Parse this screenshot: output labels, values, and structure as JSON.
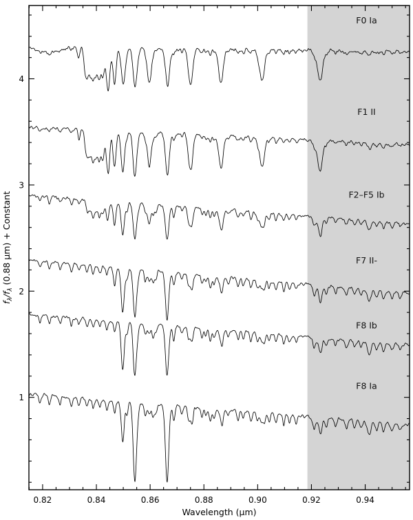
{
  "figure": {
    "background": "#ffffff"
  },
  "chart_data": {
    "type": "line",
    "title": "",
    "xlabel": "Wavelength (μm)",
    "ylabel_text": "fλ/fλ (0.88 μm) + Constant",
    "ylabel_parts": [
      {
        "text": "f",
        "style": "italic"
      },
      {
        "text": "λ",
        "style": "sub"
      },
      {
        "text": "/f",
        "style": "italic"
      },
      {
        "text": "λ",
        "style": "sub"
      },
      {
        "text": " (0.88 μm) + Constant",
        "style": "normal"
      }
    ],
    "line_color": "#000000",
    "xlim": [
      0.8149,
      0.9565
    ],
    "ylim": [
      0.13,
      4.69
    ],
    "x_major_ticks": [
      0.82,
      0.84,
      0.86,
      0.88,
      0.9,
      0.92,
      0.94
    ],
    "x_tick_labels": [
      "0.82",
      "0.84",
      "0.86",
      "0.88",
      "0.90",
      "0.92",
      "0.94"
    ],
    "x_minor_step": 0.005,
    "y_major_ticks": [
      1,
      2,
      3,
      4
    ],
    "y_tick_labels": [
      "1",
      "2",
      "3",
      "4"
    ],
    "y_minor_step": 0.2,
    "grid": false,
    "legend_position": "inline-right",
    "shaded_region": {
      "x_start": 0.9185,
      "x_end": 0.9565,
      "color": "#d4d4d4"
    },
    "metal_lines": [
      [
        0.819,
        0.06,
        0.0004
      ],
      [
        0.8225,
        0.07,
        0.0004
      ],
      [
        0.8265,
        0.06,
        0.0004
      ],
      [
        0.8307,
        0.07,
        0.0004
      ],
      [
        0.8335,
        0.06,
        0.0004
      ],
      [
        0.8365,
        0.07,
        0.0004
      ],
      [
        0.8388,
        0.08,
        0.0004
      ],
      [
        0.8413,
        0.07,
        0.0004
      ],
      [
        0.8439,
        0.08,
        0.0004
      ],
      [
        0.8468,
        0.1,
        0.00042
      ],
      [
        0.8514,
        0.1,
        0.00042
      ],
      [
        0.8555,
        0.07,
        0.0004
      ],
      [
        0.8582,
        0.1,
        0.00042
      ],
      [
        0.8611,
        0.11,
        0.00042
      ],
      [
        0.8621,
        0.08,
        0.0004
      ],
      [
        0.8688,
        0.12,
        0.00044
      ],
      [
        0.8718,
        0.06,
        0.0004
      ],
      [
        0.8742,
        0.07,
        0.0004
      ],
      [
        0.8757,
        0.08,
        0.0004
      ],
      [
        0.8793,
        0.08,
        0.0004
      ],
      [
        0.8807,
        0.07,
        0.0004
      ],
      [
        0.8824,
        0.11,
        0.00044
      ],
      [
        0.8838,
        0.08,
        0.0004
      ],
      [
        0.8868,
        0.08,
        0.0004
      ],
      [
        0.889,
        0.06,
        0.0004
      ],
      [
        0.8927,
        0.08,
        0.0004
      ],
      [
        0.8946,
        0.07,
        0.0004
      ],
      [
        0.8975,
        0.08,
        0.0004
      ],
      [
        0.8999,
        0.07,
        0.0004
      ],
      [
        0.9025,
        0.06,
        0.0004
      ],
      [
        0.9042,
        0.07,
        0.0004
      ],
      [
        0.9068,
        0.07,
        0.0004
      ],
      [
        0.9097,
        0.08,
        0.00042
      ],
      [
        0.9118,
        0.07,
        0.0004
      ],
      [
        0.9143,
        0.06,
        0.0004
      ],
      [
        0.921,
        0.1,
        0.0005
      ],
      [
        0.9234,
        0.08,
        0.00045
      ],
      [
        0.9255,
        0.07,
        0.00045
      ],
      [
        0.929,
        0.06,
        0.00045
      ],
      [
        0.933,
        0.07,
        0.0005
      ],
      [
        0.936,
        0.06,
        0.00045
      ],
      [
        0.9385,
        0.06,
        0.00045
      ],
      [
        0.9415,
        0.11,
        0.0007
      ],
      [
        0.9442,
        0.07,
        0.0005
      ],
      [
        0.9468,
        0.08,
        0.0005
      ],
      [
        0.95,
        0.06,
        0.0005
      ],
      [
        0.953,
        0.05,
        0.0005
      ]
    ],
    "series": [
      {
        "label": "F0 Ia",
        "label_x": 0.9405,
        "label_y": 4.52,
        "continuum_ref": 4.28,
        "slope": -0.35,
        "noise": 0.011,
        "seed": 11,
        "metal_scale": 0.35,
        "lines": [
          [
            0.822,
            0.05,
            0.004
          ],
          [
            0.8333,
            0.08,
            0.0004
          ],
          [
            0.83548,
            0.09,
            0.0004
          ],
          [
            0.83583,
            0.1,
            0.0004
          ],
          [
            0.83623,
            0.11,
            0.0004
          ],
          [
            0.8367,
            0.13,
            0.00042
          ],
          [
            0.83726,
            0.15,
            0.00044
          ],
          [
            0.83793,
            0.18,
            0.00046
          ],
          [
            0.83874,
            0.2,
            0.00048
          ],
          [
            0.83971,
            0.23,
            0.0005
          ],
          [
            0.84091,
            0.26,
            0.00055
          ],
          [
            0.8424,
            0.28,
            0.0006
          ],
          [
            0.84429,
            0.3,
            0.00062
          ],
          [
            0.84462,
            0.12,
            0.0005
          ],
          [
            0.84673,
            0.31,
            0.00065
          ],
          [
            0.84998,
            0.34,
            0.0007
          ],
          [
            0.85441,
            0.36,
            0.00072
          ],
          [
            0.85967,
            0.33,
            0.00072
          ],
          [
            0.8665,
            0.35,
            0.00075
          ],
          [
            0.87501,
            0.32,
            0.0008
          ],
          [
            0.8863,
            0.3,
            0.00085
          ],
          [
            0.90153,
            0.28,
            0.0009
          ],
          [
            0.92315,
            0.26,
            0.001
          ]
        ]
      },
      {
        "label": "F1 II",
        "label_x": 0.9405,
        "label_y": 3.66,
        "continuum_ref": 3.47,
        "slope": -1.2,
        "noise": 0.01,
        "seed": 22,
        "metal_scale": 0.5,
        "lines": [
          [
            0.8336,
            0.07,
            0.0004
          ],
          [
            0.8358,
            0.09,
            0.0004
          ],
          [
            0.8362,
            0.1,
            0.0004
          ],
          [
            0.8367,
            0.12,
            0.00042
          ],
          [
            0.83726,
            0.14,
            0.00044
          ],
          [
            0.83793,
            0.16,
            0.00046
          ],
          [
            0.83874,
            0.19,
            0.00048
          ],
          [
            0.83971,
            0.22,
            0.0005
          ],
          [
            0.84091,
            0.25,
            0.00055
          ],
          [
            0.8424,
            0.27,
            0.00058
          ],
          [
            0.84429,
            0.29,
            0.0006
          ],
          [
            0.84462,
            0.11,
            0.0005
          ],
          [
            0.84673,
            0.3,
            0.00062
          ],
          [
            0.8498,
            0.38,
            0.00065
          ],
          [
            0.8543,
            0.42,
            0.00068
          ],
          [
            0.85967,
            0.32,
            0.00068
          ],
          [
            0.8664,
            0.4,
            0.0007
          ],
          [
            0.87501,
            0.31,
            0.00075
          ],
          [
            0.8863,
            0.29,
            0.0008
          ],
          [
            0.90153,
            0.27,
            0.00085
          ],
          [
            0.92315,
            0.25,
            0.00095
          ]
        ]
      },
      {
        "label": "F2–F5 Ib",
        "label_x": 0.9405,
        "label_y": 2.88,
        "continuum_ref": 2.78,
        "slope": -1.85,
        "noise": 0.009,
        "seed": 33,
        "metal_scale": 0.8,
        "lines": [
          [
            0.8367,
            0.05,
            0.0004
          ],
          [
            0.83726,
            0.06,
            0.0004
          ],
          [
            0.83793,
            0.07,
            0.00042
          ],
          [
            0.83874,
            0.08,
            0.00044
          ],
          [
            0.83971,
            0.1,
            0.00046
          ],
          [
            0.84091,
            0.11,
            0.0005
          ],
          [
            0.8424,
            0.12,
            0.00052
          ],
          [
            0.84429,
            0.13,
            0.00055
          ],
          [
            0.84673,
            0.14,
            0.00058
          ],
          [
            0.8498,
            0.3,
            0.0006
          ],
          [
            0.8543,
            0.34,
            0.00062
          ],
          [
            0.85967,
            0.18,
            0.0006
          ],
          [
            0.8663,
            0.32,
            0.00065
          ],
          [
            0.87501,
            0.16,
            0.0007
          ],
          [
            0.8863,
            0.15,
            0.00075
          ],
          [
            0.90153,
            0.14,
            0.0008
          ],
          [
            0.92315,
            0.12,
            0.0009
          ]
        ]
      },
      {
        "label": "F7 II-",
        "label_x": 0.9405,
        "label_y": 2.26,
        "continuum_ref": 2.15,
        "slope": -2.2,
        "noise": 0.009,
        "seed": 44,
        "metal_scale": 1.0,
        "lines": [
          [
            0.8498,
            0.42,
            0.00058
          ],
          [
            0.8543,
            0.46,
            0.0006
          ],
          [
            0.8663,
            0.44,
            0.00062
          ],
          [
            0.84673,
            0.07,
            0.0005
          ],
          [
            0.85967,
            0.1,
            0.00055
          ],
          [
            0.87501,
            0.1,
            0.0006
          ],
          [
            0.8863,
            0.09,
            0.00065
          ],
          [
            0.90153,
            0.08,
            0.0007
          ],
          [
            0.92315,
            0.08,
            0.0008
          ]
        ]
      },
      {
        "label": "F8 Ib",
        "label_x": 0.9405,
        "label_y": 1.65,
        "continuum_ref": 1.65,
        "slope": -2.05,
        "noise": 0.009,
        "seed": 55,
        "metal_scale": 1.05,
        "lines": [
          [
            0.8498,
            0.45,
            0.00058
          ],
          [
            0.8543,
            0.5,
            0.0006
          ],
          [
            0.8663,
            0.47,
            0.00062
          ],
          [
            0.85967,
            0.09,
            0.00055
          ],
          [
            0.87501,
            0.09,
            0.0006
          ],
          [
            0.8863,
            0.08,
            0.00065
          ],
          [
            0.90153,
            0.07,
            0.0007
          ],
          [
            0.92315,
            0.07,
            0.0008
          ]
        ]
      },
      {
        "label": "F8 Ia",
        "label_x": 0.9405,
        "label_y": 1.08,
        "continuum_ref": 0.9,
        "slope": -2.05,
        "noise": 0.01,
        "seed": 66,
        "metal_scale": 1.15,
        "lines": [
          [
            0.8498,
            0.38,
            0.00055
          ],
          [
            0.8543,
            0.76,
            0.0006
          ],
          [
            0.8663,
            0.72,
            0.00062
          ],
          [
            0.85967,
            0.1,
            0.00055
          ],
          [
            0.87501,
            0.09,
            0.0006
          ],
          [
            0.8863,
            0.08,
            0.00065
          ],
          [
            0.90153,
            0.08,
            0.0007
          ],
          [
            0.92315,
            0.08,
            0.0008
          ]
        ]
      }
    ]
  }
}
